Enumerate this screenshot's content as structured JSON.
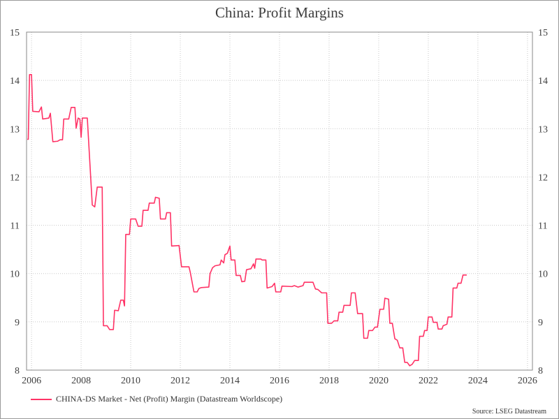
{
  "chart_data": {
    "type": "line",
    "title": "China: Profit Margins",
    "xlabel": "",
    "ylabel": "",
    "xlim": [
      2005.8,
      2026.2
    ],
    "ylim": [
      8,
      15
    ],
    "x_ticks": [
      "2006",
      "2008",
      "2010",
      "2012",
      "2014",
      "2016",
      "2018",
      "2020",
      "2022",
      "2024",
      "2026"
    ],
    "y_ticks_left": [
      "8",
      "9",
      "10",
      "11",
      "12",
      "13",
      "14",
      "15"
    ],
    "y_ticks_right": [
      "8",
      "9",
      "10",
      "11",
      "12",
      "13",
      "14",
      "15"
    ],
    "grid": true,
    "legend_position": "bottom-left",
    "series": [
      {
        "name": "CHINA-DS Market - Net (Profit) Margin (Datastream Worldscope)",
        "color": "#ff3366",
        "points": [
          [
            2005.83,
            12.78
          ],
          [
            2005.87,
            12.78
          ],
          [
            2005.92,
            14.12
          ],
          [
            2006.0,
            14.12
          ],
          [
            2006.05,
            13.36
          ],
          [
            2006.3,
            13.35
          ],
          [
            2006.4,
            13.45
          ],
          [
            2006.45,
            13.2
          ],
          [
            2006.7,
            13.22
          ],
          [
            2006.76,
            13.32
          ],
          [
            2006.86,
            12.73
          ],
          [
            2007.05,
            12.74
          ],
          [
            2007.15,
            12.77
          ],
          [
            2007.25,
            12.77
          ],
          [
            2007.3,
            13.2
          ],
          [
            2007.5,
            13.2
          ],
          [
            2007.6,
            13.44
          ],
          [
            2007.75,
            13.44
          ],
          [
            2007.8,
            13.01
          ],
          [
            2007.88,
            13.22
          ],
          [
            2007.95,
            13.2
          ],
          [
            2008.0,
            12.82
          ],
          [
            2008.05,
            13.22
          ],
          [
            2008.25,
            13.22
          ],
          [
            2008.45,
            11.42
          ],
          [
            2008.55,
            11.38
          ],
          [
            2008.65,
            11.79
          ],
          [
            2008.85,
            11.79
          ],
          [
            2008.9,
            8.92
          ],
          [
            2009.05,
            8.92
          ],
          [
            2009.15,
            8.84
          ],
          [
            2009.3,
            8.84
          ],
          [
            2009.35,
            9.24
          ],
          [
            2009.5,
            9.23
          ],
          [
            2009.6,
            9.45
          ],
          [
            2009.7,
            9.45
          ],
          [
            2009.75,
            9.33
          ],
          [
            2009.8,
            10.81
          ],
          [
            2009.95,
            10.81
          ],
          [
            2010.0,
            11.13
          ],
          [
            2010.2,
            11.13
          ],
          [
            2010.3,
            10.98
          ],
          [
            2010.45,
            10.98
          ],
          [
            2010.5,
            11.31
          ],
          [
            2010.7,
            11.31
          ],
          [
            2010.75,
            11.46
          ],
          [
            2010.95,
            11.46
          ],
          [
            2011.0,
            11.58
          ],
          [
            2011.15,
            11.56
          ],
          [
            2011.2,
            11.13
          ],
          [
            2011.4,
            11.13
          ],
          [
            2011.45,
            11.26
          ],
          [
            2011.6,
            11.26
          ],
          [
            2011.65,
            10.57
          ],
          [
            2011.95,
            10.58
          ],
          [
            2012.05,
            10.14
          ],
          [
            2012.35,
            10.14
          ],
          [
            2012.4,
            10.03
          ],
          [
            2012.55,
            9.62
          ],
          [
            2012.68,
            9.62
          ],
          [
            2012.75,
            9.69
          ],
          [
            2012.85,
            9.71
          ],
          [
            2013.15,
            9.72
          ],
          [
            2013.2,
            10.0
          ],
          [
            2013.3,
            10.12
          ],
          [
            2013.4,
            10.16
          ],
          [
            2013.6,
            10.18
          ],
          [
            2013.65,
            10.28
          ],
          [
            2013.75,
            10.22
          ],
          [
            2013.8,
            10.39
          ],
          [
            2013.9,
            10.42
          ],
          [
            2014.0,
            10.57
          ],
          [
            2014.05,
            10.28
          ],
          [
            2014.2,
            10.28
          ],
          [
            2014.25,
            9.96
          ],
          [
            2014.42,
            9.96
          ],
          [
            2014.48,
            9.83
          ],
          [
            2014.6,
            9.84
          ],
          [
            2014.67,
            10.08
          ],
          [
            2014.85,
            10.1
          ],
          [
            2014.95,
            10.2
          ],
          [
            2015.0,
            10.11
          ],
          [
            2015.05,
            10.3
          ],
          [
            2015.25,
            10.3
          ],
          [
            2015.3,
            10.28
          ],
          [
            2015.45,
            10.28
          ],
          [
            2015.5,
            9.7
          ],
          [
            2015.7,
            9.73
          ],
          [
            2015.8,
            9.8
          ],
          [
            2015.85,
            9.62
          ],
          [
            2016.05,
            9.62
          ],
          [
            2016.1,
            9.74
          ],
          [
            2016.5,
            9.73
          ],
          [
            2016.6,
            9.75
          ],
          [
            2016.75,
            9.72
          ],
          [
            2016.95,
            9.75
          ],
          [
            2017.0,
            9.82
          ],
          [
            2017.35,
            9.82
          ],
          [
            2017.45,
            9.68
          ],
          [
            2017.55,
            9.67
          ],
          [
            2017.7,
            9.6
          ],
          [
            2017.9,
            9.6
          ],
          [
            2017.95,
            8.97
          ],
          [
            2018.1,
            8.97
          ],
          [
            2018.2,
            9.02
          ],
          [
            2018.35,
            9.02
          ],
          [
            2018.4,
            9.2
          ],
          [
            2018.55,
            9.2
          ],
          [
            2018.6,
            9.34
          ],
          [
            2018.85,
            9.34
          ],
          [
            2018.9,
            9.6
          ],
          [
            2019.05,
            9.6
          ],
          [
            2019.15,
            9.17
          ],
          [
            2019.35,
            9.17
          ],
          [
            2019.4,
            8.66
          ],
          [
            2019.55,
            8.66
          ],
          [
            2019.6,
            8.82
          ],
          [
            2019.75,
            8.82
          ],
          [
            2019.85,
            8.89
          ],
          [
            2019.95,
            8.89
          ],
          [
            2020.05,
            9.26
          ],
          [
            2020.2,
            9.26
          ],
          [
            2020.25,
            9.49
          ],
          [
            2020.4,
            9.47
          ],
          [
            2020.45,
            8.97
          ],
          [
            2020.55,
            8.97
          ],
          [
            2020.65,
            8.65
          ],
          [
            2020.75,
            8.62
          ],
          [
            2020.85,
            8.46
          ],
          [
            2020.97,
            8.46
          ],
          [
            2021.05,
            8.16
          ],
          [
            2021.15,
            8.16
          ],
          [
            2021.25,
            8.09
          ],
          [
            2021.35,
            8.12
          ],
          [
            2021.45,
            8.2
          ],
          [
            2021.6,
            8.2
          ],
          [
            2021.65,
            8.7
          ],
          [
            2021.8,
            8.7
          ],
          [
            2021.85,
            8.82
          ],
          [
            2021.95,
            8.82
          ],
          [
            2022.0,
            9.1
          ],
          [
            2022.15,
            9.1
          ],
          [
            2022.2,
            8.99
          ],
          [
            2022.35,
            8.99
          ],
          [
            2022.4,
            8.85
          ],
          [
            2022.55,
            8.85
          ],
          [
            2022.6,
            8.92
          ],
          [
            2022.75,
            8.95
          ],
          [
            2022.8,
            9.1
          ],
          [
            2022.95,
            9.1
          ],
          [
            2023.0,
            9.7
          ],
          [
            2023.15,
            9.7
          ],
          [
            2023.2,
            9.8
          ],
          [
            2023.32,
            9.8
          ],
          [
            2023.4,
            9.97
          ],
          [
            2023.55,
            9.97
          ]
        ]
      }
    ]
  },
  "source_text": "Source: LSEG Datastream"
}
